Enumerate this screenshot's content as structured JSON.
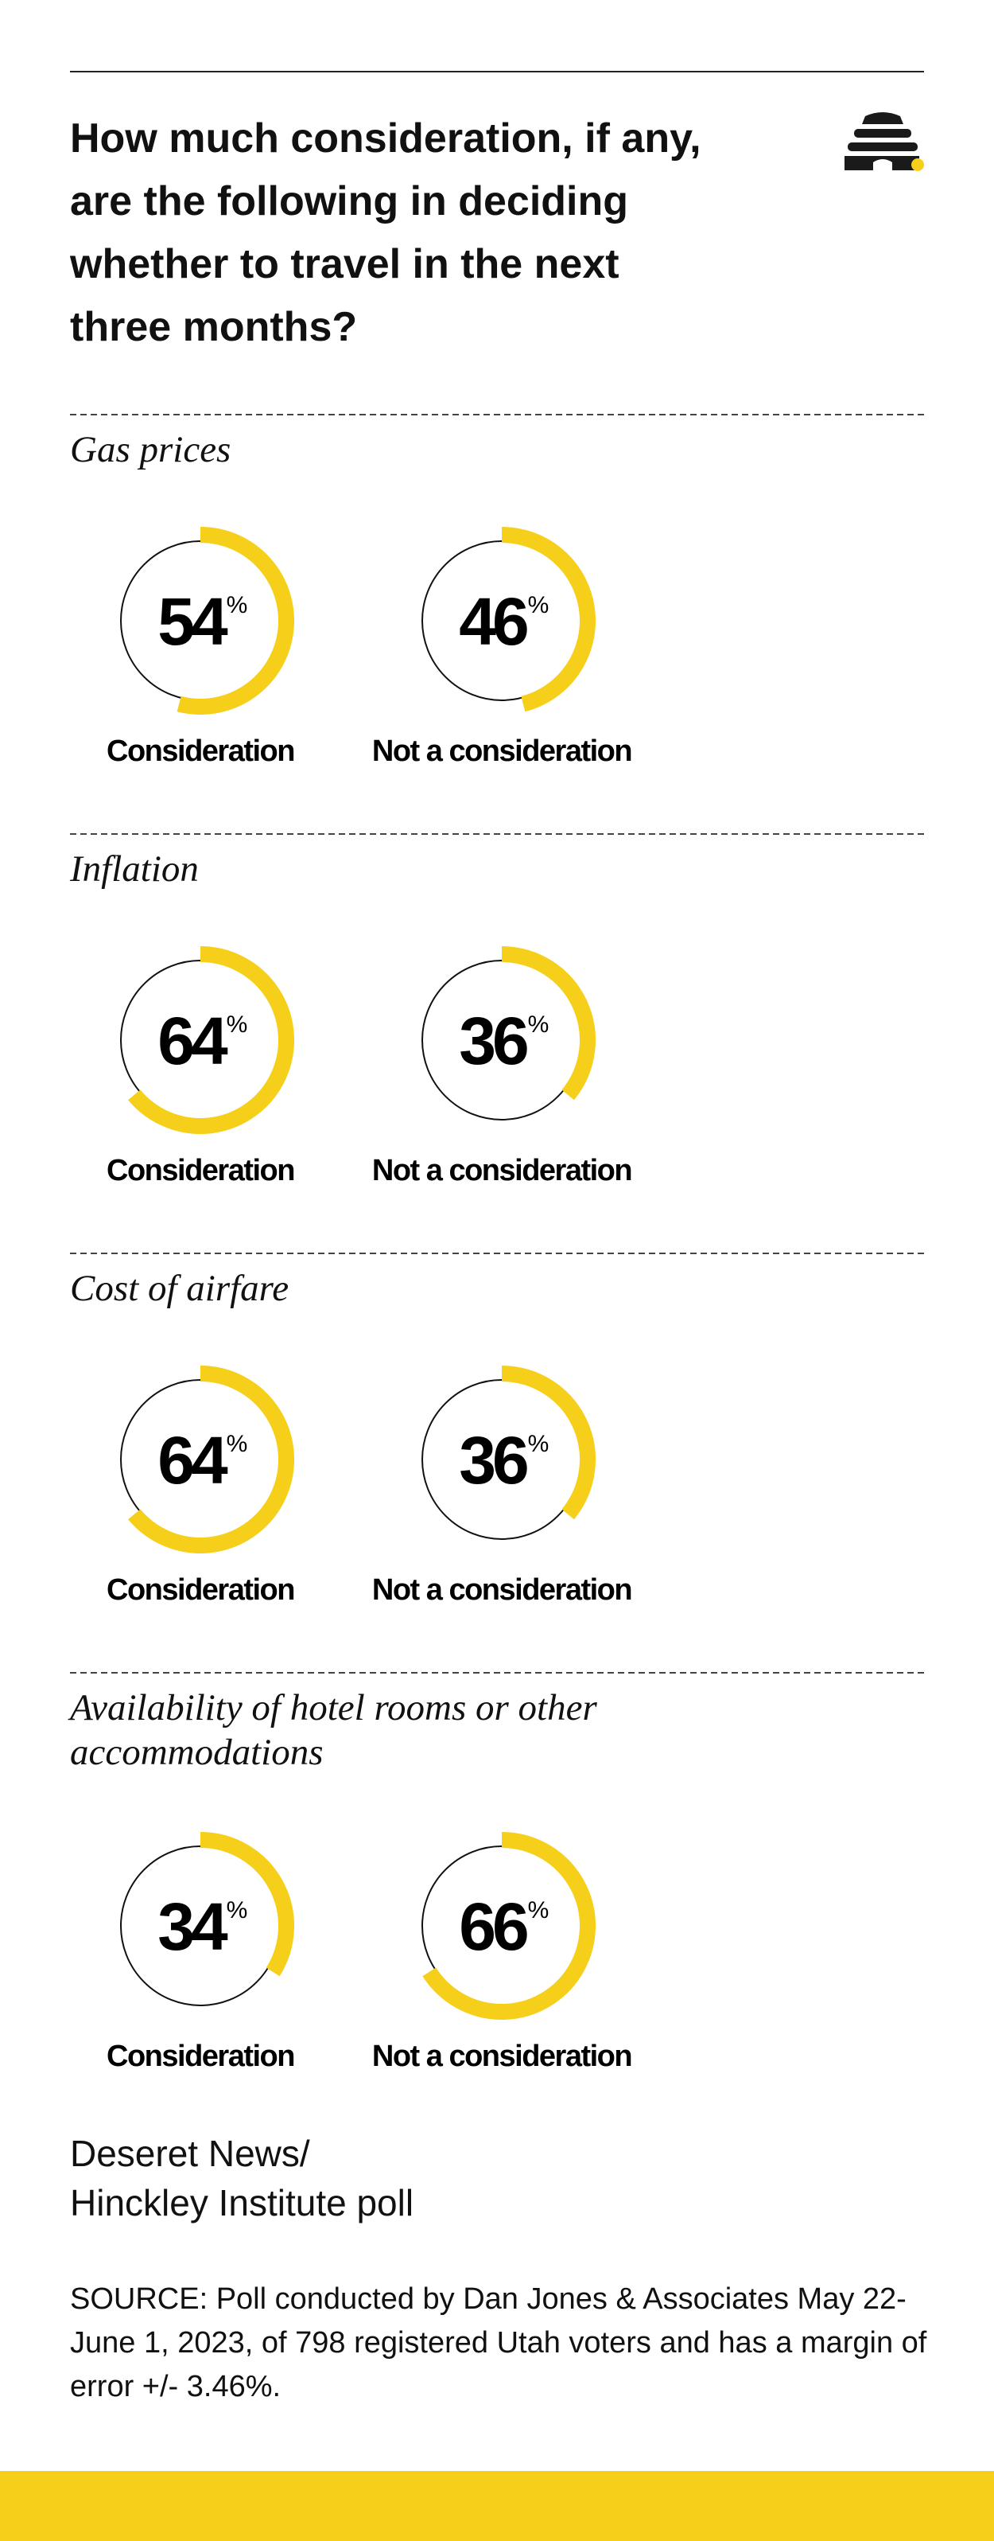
{
  "header": {
    "title": "How much consideration, if any,\nare the following in deciding\nwhether to travel in the next\nthree months?"
  },
  "chart_data": [
    {
      "type": "donut",
      "title": "Gas prices",
      "categories": [
        "Consideration",
        "Not a consideration"
      ],
      "values": [
        54,
        46
      ],
      "unit": "%",
      "color": "#f6cf1a"
    },
    {
      "type": "donut",
      "title": "Inflation",
      "categories": [
        "Consideration",
        "Not a consideration"
      ],
      "values": [
        64,
        36
      ],
      "unit": "%",
      "color": "#f6cf1a"
    },
    {
      "type": "donut",
      "title": "Cost of airfare",
      "categories": [
        "Consideration",
        "Not a consideration"
      ],
      "values": [
        64,
        36
      ],
      "unit": "%",
      "color": "#f6cf1a"
    },
    {
      "type": "donut",
      "title": "Availability of hotel rooms or other accommodations",
      "categories": [
        "Consideration",
        "Not a consideration"
      ],
      "values": [
        34,
        66
      ],
      "unit": "%",
      "color": "#f6cf1a"
    }
  ],
  "credit": "Deseret News/\nHinckley Institute poll",
  "source": "SOURCE: Poll conducted by Dan Jones & Associates May 22-June 1, 2023, of 798 registered Utah voters and has a margin of error +/- 3.46%."
}
